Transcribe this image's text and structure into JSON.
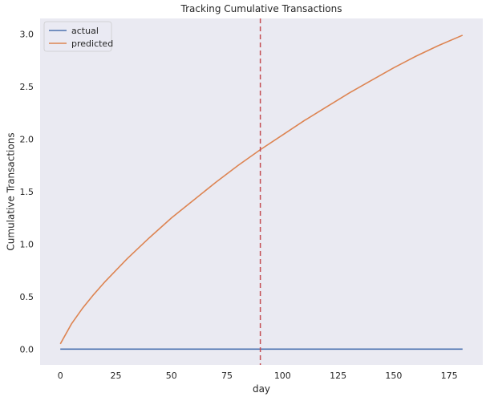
{
  "chart_data": {
    "type": "line",
    "title": "Tracking Cumulative Transactions",
    "xlabel": "day",
    "ylabel": "Cumulative Transactions",
    "xlim": [
      -9.1,
      190.1
    ],
    "ylim": [
      -0.15,
      3.15
    ],
    "x_ticks": [
      0,
      25,
      50,
      75,
      100,
      125,
      150,
      175
    ],
    "y_ticks": [
      0.0,
      0.5,
      1.0,
      1.5,
      2.0,
      2.5,
      3.0
    ],
    "y_tick_labels": [
      "0.0",
      "0.5",
      "1.0",
      "1.5",
      "2.0",
      "2.5",
      "3.0"
    ],
    "grid": false,
    "background": "#eaeaf2",
    "legend_position": "upper-left",
    "vertical_line": {
      "x": 90,
      "color": "#c44e52",
      "style": "dashed"
    },
    "series": [
      {
        "name": "actual",
        "color": "#4c72b0",
        "x": [
          0,
          181
        ],
        "y": [
          0,
          0
        ]
      },
      {
        "name": "predicted",
        "color": "#dd8452",
        "x": [
          0,
          5,
          10,
          15,
          20,
          30,
          40,
          50,
          60,
          70,
          80,
          90,
          100,
          110,
          120,
          130,
          140,
          150,
          160,
          170,
          181
        ],
        "y": [
          0.05,
          0.24,
          0.39,
          0.52,
          0.64,
          0.86,
          1.06,
          1.25,
          1.42,
          1.59,
          1.75,
          1.9,
          2.04,
          2.18,
          2.31,
          2.44,
          2.56,
          2.68,
          2.79,
          2.89,
          2.99
        ]
      }
    ]
  }
}
